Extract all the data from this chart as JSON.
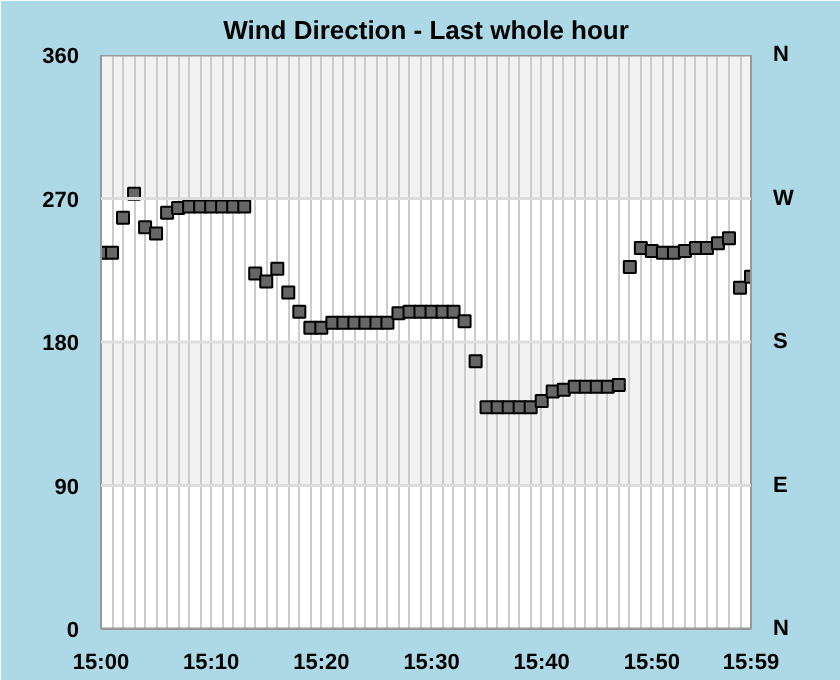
{
  "chart_data": {
    "type": "scatter",
    "title": "Wind Direction - Last whole hour",
    "x": [
      15.0,
      15.0167,
      15.0333,
      15.05,
      15.0667,
      15.0833,
      15.1,
      15.1167,
      15.1333,
      15.15,
      15.1667,
      15.1833,
      15.2,
      15.2167,
      15.2333,
      15.25,
      15.2667,
      15.2833,
      15.3,
      15.3167,
      15.3333,
      15.35,
      15.3667,
      15.3833,
      15.4,
      15.4167,
      15.4333,
      15.45,
      15.4667,
      15.4833,
      15.5,
      15.5167,
      15.5333,
      15.55,
      15.5667,
      15.5833,
      15.6,
      15.6167,
      15.6333,
      15.65,
      15.6667,
      15.6833,
      15.7,
      15.7167,
      15.7333,
      15.75,
      15.7667,
      15.7833,
      15.8,
      15.8167,
      15.8333,
      15.85,
      15.8667,
      15.8833,
      15.9,
      15.9167,
      15.9333,
      15.95,
      15.9667,
      15.9833
    ],
    "series": [
      {
        "color": "#666666",
        "values": [
          236,
          236,
          258,
          273,
          252,
          248,
          261,
          264,
          265,
          265,
          265,
          265,
          265,
          265,
          223,
          218,
          226,
          211,
          199,
          189,
          189,
          192,
          192,
          192,
          192,
          192,
          192,
          198,
          199,
          199,
          199,
          199,
          199,
          193,
          168,
          139,
          139,
          139,
          139,
          139,
          143,
          149,
          150,
          152,
          152,
          152,
          152,
          153,
          227,
          239,
          237,
          236,
          236,
          237,
          239,
          239,
          242,
          245,
          214,
          221
        ]
      }
    ],
    "marker": "square",
    "xlim": [
      15.0,
      15.9833
    ],
    "xticks": [
      {
        "value": 15.0,
        "label": "15:00"
      },
      {
        "value": 15.0167,
        "label": null
      },
      {
        "value": 15.0333,
        "label": null
      },
      {
        "value": 15.05,
        "label": null
      },
      {
        "value": 15.0667,
        "label": null
      },
      {
        "value": 15.0833,
        "label": null
      },
      {
        "value": 15.1,
        "label": null
      },
      {
        "value": 15.1167,
        "label": null
      },
      {
        "value": 15.1333,
        "label": null
      },
      {
        "value": 15.15,
        "label": null
      },
      {
        "value": 15.1667,
        "label": "15:10"
      },
      {
        "value": 15.1833,
        "label": null
      },
      {
        "value": 15.2,
        "label": null
      },
      {
        "value": 15.2167,
        "label": null
      },
      {
        "value": 15.2333,
        "label": null
      },
      {
        "value": 15.25,
        "label": null
      },
      {
        "value": 15.2667,
        "label": null
      },
      {
        "value": 15.2833,
        "label": null
      },
      {
        "value": 15.3,
        "label": null
      },
      {
        "value": 15.3167,
        "label": null
      },
      {
        "value": 15.3333,
        "label": "15:20"
      },
      {
        "value": 15.35,
        "label": null
      },
      {
        "value": 15.3667,
        "label": null
      },
      {
        "value": 15.3833,
        "label": null
      },
      {
        "value": 15.4,
        "label": null
      },
      {
        "value": 15.4167,
        "label": null
      },
      {
        "value": 15.4333,
        "label": null
      },
      {
        "value": 15.45,
        "label": null
      },
      {
        "value": 15.4667,
        "label": null
      },
      {
        "value": 15.4833,
        "label": null
      },
      {
        "value": 15.5,
        "label": "15:30"
      },
      {
        "value": 15.5167,
        "label": null
      },
      {
        "value": 15.5333,
        "label": null
      },
      {
        "value": 15.55,
        "label": null
      },
      {
        "value": 15.5667,
        "label": null
      },
      {
        "value": 15.5833,
        "label": null
      },
      {
        "value": 15.6,
        "label": null
      },
      {
        "value": 15.6167,
        "label": null
      },
      {
        "value": 15.6333,
        "label": null
      },
      {
        "value": 15.65,
        "label": null
      },
      {
        "value": 15.6667,
        "label": "15:40"
      },
      {
        "value": 15.6833,
        "label": null
      },
      {
        "value": 15.7,
        "label": null
      },
      {
        "value": 15.7167,
        "label": null
      },
      {
        "value": 15.7333,
        "label": null
      },
      {
        "value": 15.75,
        "label": null
      },
      {
        "value": 15.7667,
        "label": null
      },
      {
        "value": 15.7833,
        "label": null
      },
      {
        "value": 15.8,
        "label": null
      },
      {
        "value": 15.8167,
        "label": null
      },
      {
        "value": 15.8333,
        "label": "15:50"
      },
      {
        "value": 15.85,
        "label": null
      },
      {
        "value": 15.8667,
        "label": null
      },
      {
        "value": 15.8833,
        "label": null
      },
      {
        "value": 15.9,
        "label": null
      },
      {
        "value": 15.9167,
        "label": null
      },
      {
        "value": 15.9333,
        "label": null
      },
      {
        "value": 15.95,
        "label": null
      },
      {
        "value": 15.9667,
        "label": null
      },
      {
        "value": 15.9833,
        "label": "15:59"
      }
    ],
    "ylim": [
      0,
      360
    ],
    "yticks": [
      0,
      90,
      180,
      270,
      360
    ],
    "ref_lines": [
      {
        "axis": "y",
        "value": 0,
        "label": "N",
        "color": "#999999"
      },
      {
        "axis": "y",
        "value": 90,
        "label": "E",
        "color": "#dddddd"
      },
      {
        "axis": "y",
        "value": 180,
        "label": "S",
        "color": "#dddddd"
      },
      {
        "axis": "y",
        "value": 270,
        "label": "W",
        "color": "#dddddd"
      },
      {
        "axis": "y",
        "value": 360,
        "label": "N",
        "color": "#999999"
      }
    ],
    "bands": [
      {
        "axis": "y",
        "from": 90,
        "to": 180,
        "color": "#f2f2f2"
      },
      {
        "axis": "y",
        "from": 270,
        "to": 360,
        "color": "#f2f2f2"
      }
    ],
    "grid": "x"
  }
}
